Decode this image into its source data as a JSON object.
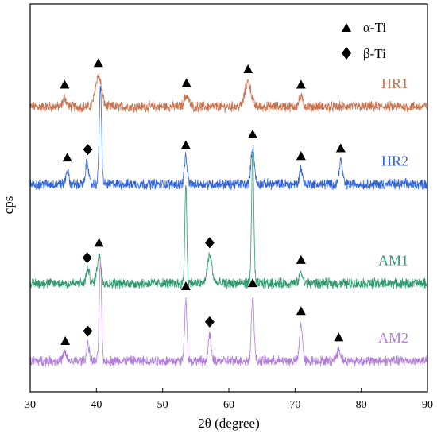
{
  "chart_data": {
    "type": "line",
    "title": "",
    "xlabel": "2θ (degree)",
    "ylabel": "cps",
    "xlim": [
      30,
      90
    ],
    "x_ticks": [
      "30",
      "40",
      "50",
      "60",
      "70",
      "80",
      "90"
    ],
    "y_ticks": [],
    "grid": false,
    "legend": {
      "position": "top-right",
      "entries": [
        {
          "marker": "triangle",
          "label": "α-Ti"
        },
        {
          "marker": "diamond",
          "label": "β-Ti"
        }
      ]
    },
    "series": [
      {
        "name": "HR1",
        "color": "#c8734e",
        "offset": 9.2,
        "peaks": [
          {
            "x": 35.2,
            "h": 0.3,
            "w": 0.25
          },
          {
            "x": 40.3,
            "h": 1.0,
            "w": 0.45
          },
          {
            "x": 53.6,
            "h": 0.35,
            "w": 0.35
          },
          {
            "x": 62.9,
            "h": 0.8,
            "w": 0.45
          },
          {
            "x": 70.9,
            "h": 0.3,
            "w": 0.3
          }
        ],
        "markers": [
          {
            "x": 35.2,
            "type": "triangle"
          },
          {
            "x": 40.3,
            "type": "triangle"
          },
          {
            "x": 53.6,
            "type": "triangle"
          },
          {
            "x": 62.9,
            "type": "triangle"
          },
          {
            "x": 70.9,
            "type": "triangle"
          }
        ]
      },
      {
        "name": "HR2",
        "color": "#2f63d8",
        "offset": 6.7,
        "peaks": [
          {
            "x": 35.6,
            "h": 0.45,
            "w": 0.2
          },
          {
            "x": 38.6,
            "h": 0.8,
            "w": 0.2
          },
          {
            "x": 40.6,
            "h": 3.1,
            "w": 0.18
          },
          {
            "x": 53.5,
            "h": 0.85,
            "w": 0.22
          },
          {
            "x": 63.6,
            "h": 1.2,
            "w": 0.25
          },
          {
            "x": 70.9,
            "h": 0.5,
            "w": 0.22
          },
          {
            "x": 76.9,
            "h": 0.75,
            "w": 0.25
          }
        ],
        "markers": [
          {
            "x": 35.6,
            "type": "triangle"
          },
          {
            "x": 38.7,
            "type": "diamond"
          },
          {
            "x": 53.5,
            "type": "triangle"
          },
          {
            "x": 63.6,
            "type": "triangle"
          },
          {
            "x": 70.9,
            "type": "triangle"
          },
          {
            "x": 76.9,
            "type": "triangle"
          }
        ]
      },
      {
        "name": "AM1",
        "color": "#2e9a6c",
        "offset": 3.5,
        "peaks": [
          {
            "x": 38.7,
            "h": 0.45,
            "w": 0.25
          },
          {
            "x": 40.4,
            "h": 0.9,
            "w": 0.3
          },
          {
            "x": 53.5,
            "h": 3.2,
            "w": 0.15
          },
          {
            "x": 57.1,
            "h": 0.9,
            "w": 0.35
          },
          {
            "x": 63.6,
            "h": 4.2,
            "w": 0.17
          },
          {
            "x": 70.9,
            "h": 0.35,
            "w": 0.25
          }
        ],
        "markers": [
          {
            "x": 38.6,
            "type": "diamond"
          },
          {
            "x": 40.4,
            "type": "triangle"
          },
          {
            "x": 57.1,
            "type": "diamond"
          },
          {
            "x": 70.9,
            "type": "triangle"
          }
        ]
      },
      {
        "name": "AM2",
        "color": "#b07ed8",
        "offset": 1.0,
        "peaks": [
          {
            "x": 35.2,
            "h": 0.25,
            "w": 0.25
          },
          {
            "x": 38.7,
            "h": 0.55,
            "w": 0.2
          },
          {
            "x": 40.6,
            "h": 3.2,
            "w": 0.17
          },
          {
            "x": 53.5,
            "h": 2.0,
            "w": 0.18
          },
          {
            "x": 57.1,
            "h": 0.85,
            "w": 0.2
          },
          {
            "x": 63.6,
            "h": 2.1,
            "w": 0.2
          },
          {
            "x": 70.9,
            "h": 1.2,
            "w": 0.22
          },
          {
            "x": 76.6,
            "h": 0.35,
            "w": 0.3
          }
        ],
        "markers": [
          {
            "x": 35.3,
            "type": "triangle"
          },
          {
            "x": 38.7,
            "type": "diamond"
          },
          {
            "x": 53.5,
            "type": "triangle"
          },
          {
            "x": 57.1,
            "type": "diamond"
          },
          {
            "x": 63.6,
            "type": "triangle"
          },
          {
            "x": 70.9,
            "type": "triangle"
          },
          {
            "x": 76.6,
            "type": "triangle"
          }
        ]
      }
    ]
  }
}
